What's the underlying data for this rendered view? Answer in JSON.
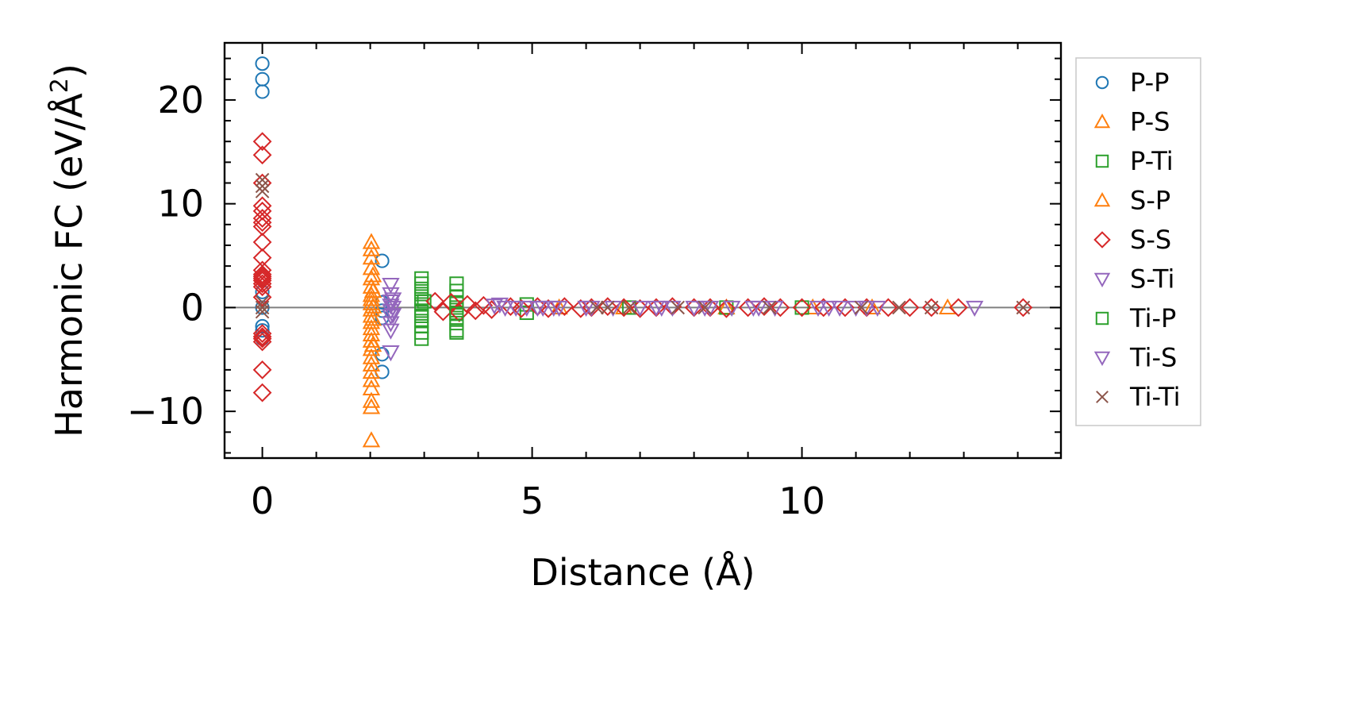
{
  "chart_data": {
    "type": "scatter",
    "title": "",
    "xlabel": "Distance (Å)",
    "ylabel_main": "Harmonic FC (eV/Å",
    "ylabel_sup": "2",
    "ylabel_close": ")",
    "xlim": [
      -0.7,
      14.8
    ],
    "ylim": [
      -14.5,
      25.5
    ],
    "xticks": [
      0,
      5,
      10
    ],
    "xtick_labels": [
      "0",
      "5",
      "10"
    ],
    "yticks": [
      -10,
      0,
      10,
      20
    ],
    "ytick_labels": [
      "−10",
      "0",
      "10",
      "20"
    ],
    "grid": false,
    "legend_position": "outside-right",
    "zero_line": 0,
    "series": [
      {
        "name": "P-P",
        "marker": "circle",
        "color": "#1f77b4",
        "x": [
          0,
          0,
          0,
          0,
          0,
          0,
          0,
          0,
          2.22,
          2.22,
          2.22,
          2.22,
          2.22,
          2.22
        ],
        "y": [
          23.5,
          22,
          20.8,
          1.5,
          -1.8,
          -2.2,
          -3,
          0,
          4.5,
          0.5,
          -0.3,
          -1,
          -4.5,
          -6.2
        ]
      },
      {
        "name": "P-S",
        "marker": "triangle-up",
        "color": "#ff7f0e",
        "x": [
          2.02,
          2.02,
          2.02,
          2.02,
          2.02,
          2.02,
          2.02,
          2.02,
          2.02,
          2.02,
          2.02,
          2.02,
          2.02,
          2.02,
          2.02,
          2.02,
          2.02,
          2.02,
          2.02,
          2.02,
          2.02,
          2.02,
          2.02,
          2.02,
          5.5,
          6.7,
          8.6,
          10.2,
          11.3,
          12.7
        ],
        "y": [
          6.3,
          5.6,
          4.8,
          3.8,
          2.8,
          2.0,
          1.2,
          0.4,
          -0.2,
          -0.8,
          -1.4,
          -2.0,
          -2.6,
          -3.2,
          -4.0,
          -4.8,
          -5.5,
          -6.2,
          -7.0,
          -7.8,
          -9.0,
          -9.6,
          -12.8,
          0.8,
          0,
          0,
          0,
          0,
          0,
          0
        ]
      },
      {
        "name": "P-Ti",
        "marker": "square",
        "color": "#2ca02c",
        "x": [
          2.95,
          2.95,
          2.95,
          2.95,
          2.95,
          2.95,
          2.95,
          2.95,
          2.95,
          2.95,
          2.95,
          2.95,
          3.6,
          3.6,
          3.6,
          3.6,
          3.6,
          3.6,
          3.6,
          3.6,
          3.6,
          3.6,
          4.9,
          4.9,
          6.8,
          8.6,
          10.0
        ],
        "y": [
          2.8,
          2.3,
          1.8,
          1.3,
          0.8,
          0.3,
          -0.3,
          -0.8,
          -1.3,
          -1.8,
          -2.4,
          -3.0,
          2.3,
          1.6,
          1.0,
          0.5,
          0,
          -0.5,
          -1.0,
          -1.5,
          -2.2,
          -2.4,
          0.3,
          -0.5,
          0,
          0,
          0
        ]
      },
      {
        "name": "S-P",
        "marker": "triangle-up",
        "color": "#ff7f0e",
        "x": [
          2.05,
          2.05,
          2.05,
          2.05,
          2.05
        ],
        "y": [
          3.1,
          1.6,
          0.1,
          -1.1,
          -3.6
        ]
      },
      {
        "name": "S-S",
        "marker": "diamond",
        "color": "#d62728",
        "x": [
          0,
          0,
          0,
          0,
          0,
          0,
          0,
          0,
          0,
          0,
          0,
          0,
          0,
          0,
          0,
          0,
          0,
          0,
          0,
          0,
          0,
          0,
          0,
          0,
          3.2,
          3.35,
          3.5,
          3.65,
          3.8,
          3.95,
          4.1,
          4.25,
          4.6,
          4.8,
          5.1,
          5.3,
          5.6,
          5.9,
          6.1,
          6.4,
          6.7,
          7.0,
          7.3,
          7.6,
          8.0,
          8.3,
          8.6,
          9.0,
          9.3,
          9.6,
          10.0,
          10.4,
          10.8,
          11.2,
          11.6,
          12.0,
          12.4,
          12.9,
          14.1
        ],
        "y": [
          16.0,
          14.7,
          12.0,
          9.8,
          9.3,
          8.6,
          8.2,
          7.8,
          6.3,
          4.8,
          3.6,
          3.2,
          3.0,
          2.8,
          2.6,
          2.3,
          2.0,
          1.0,
          -2.5,
          -2.8,
          -3.0,
          -3.3,
          -6.0,
          -8.2,
          0.6,
          -0.4,
          0.5,
          -0.5,
          0.3,
          -0.3,
          0.2,
          -0.2,
          0.1,
          -0.1,
          0.1,
          -0.1,
          0.1,
          -0.1,
          0,
          0.1,
          0,
          -0.1,
          0,
          0.1,
          0,
          0,
          -0.1,
          0,
          0.1,
          0,
          0,
          0,
          0,
          0,
          0,
          0,
          0,
          0,
          0
        ]
      },
      {
        "name": "S-Ti",
        "marker": "triangle-down",
        "color": "#9467bd",
        "x": [
          2.38,
          2.38,
          2.38,
          2.38,
          2.38,
          2.38,
          2.38,
          2.38,
          2.38,
          4.4,
          4.9,
          5.1,
          5.4,
          6.1,
          7.4,
          8.2,
          9.1,
          10.3,
          11.2,
          13.2
        ],
        "y": [
          2.2,
          1.3,
          0.6,
          0.2,
          -0.3,
          -0.8,
          -1.5,
          -2.2,
          -4.3,
          0.3,
          0,
          0,
          0,
          0,
          0,
          0,
          0,
          0,
          0,
          0
        ]
      },
      {
        "name": "Ti-P",
        "marker": "square",
        "color": "#2ca02c",
        "x": [
          3.0,
          3.6
        ],
        "y": [
          0.6,
          -0.6
        ]
      },
      {
        "name": "Ti-S",
        "marker": "triangle-down",
        "color": "#9467bd",
        "x": [
          2.42,
          2.42,
          2.42,
          4.3,
          4.5,
          4.7,
          5.2,
          5.5,
          6.0,
          6.5,
          7.0,
          7.3,
          7.6,
          8.0,
          8.3,
          8.7,
          9.2,
          9.5,
          10.5,
          10.7,
          11.0,
          11.4
        ],
        "y": [
          0.8,
          0,
          -0.7,
          0.2,
          0,
          0,
          0,
          0,
          0,
          0,
          0,
          0,
          0,
          0,
          0,
          0,
          0,
          0,
          0,
          0,
          0,
          0
        ]
      },
      {
        "name": "Ti-Ti",
        "marker": "x",
        "color": "#8c564b",
        "x": [
          0,
          0,
          0,
          0,
          0,
          0,
          6.2,
          6.4,
          6.8,
          7.7,
          8.2,
          9.4,
          11.1,
          11.8,
          12.4,
          14.1
        ],
        "y": [
          12.3,
          11.7,
          11.2,
          0.5,
          0,
          -0.4,
          0,
          0,
          0,
          0,
          0,
          0,
          0,
          0,
          0,
          0
        ]
      }
    ]
  }
}
